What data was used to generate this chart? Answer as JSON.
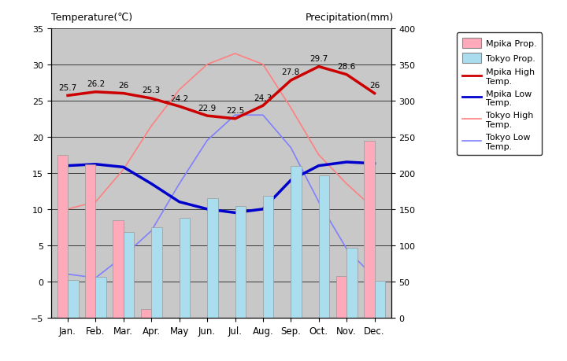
{
  "months": [
    "Jan.",
    "Feb.",
    "Mar.",
    "Apr.",
    "May",
    "Jun.",
    "Jul.",
    "Aug.",
    "Sep.",
    "Oct.",
    "Nov.",
    "Dec."
  ],
  "mpika_high": [
    25.7,
    26.2,
    26.0,
    25.3,
    24.2,
    22.9,
    22.5,
    24.3,
    27.8,
    29.7,
    28.6,
    26.0
  ],
  "mpika_low": [
    16.0,
    16.2,
    15.8,
    13.5,
    11.0,
    10.0,
    9.5,
    10.0,
    14.0,
    16.0,
    16.5,
    16.3
  ],
  "tokyo_high": [
    10.0,
    11.0,
    15.5,
    21.5,
    26.5,
    30.0,
    31.5,
    30.0,
    24.0,
    17.5,
    13.5,
    10.0
  ],
  "tokyo_low": [
    1.0,
    0.5,
    3.5,
    7.0,
    13.5,
    19.5,
    23.0,
    23.0,
    18.5,
    11.0,
    4.5,
    0.5
  ],
  "mpika_prcp_mm": [
    225,
    212,
    135,
    12,
    0,
    0,
    0,
    0,
    0,
    0,
    57,
    244
  ],
  "tokyo_prcp_mm": [
    52,
    56,
    118,
    125,
    138,
    165,
    154,
    168,
    210,
    197,
    97,
    51
  ],
  "mpika_high_labels": [
    "25.7",
    "26.2",
    "26",
    "25.3",
    "24.2",
    "22.9",
    "22.5",
    "24.3",
    "27.8",
    "29.7",
    "28.6",
    "26"
  ],
  "title_left": "Temperature(℃)",
  "title_right": "Precipitation(mm)",
  "ylim_left": [
    -5,
    35
  ],
  "ylim_right": [
    0,
    400
  ],
  "yticks_left": [
    -5,
    0,
    5,
    10,
    15,
    20,
    25,
    30,
    35
  ],
  "yticks_right": [
    0,
    50,
    100,
    150,
    200,
    250,
    300,
    350,
    400
  ],
  "mpika_high_color": "#cc0000",
  "mpika_low_color": "#0000cc",
  "tokyo_high_color": "#ff8080",
  "tokyo_low_color": "#8080ff",
  "mpika_prcp_color": "#ffaabb",
  "tokyo_prcp_color": "#aaddee",
  "bg_color": "#c8c8c8",
  "legend_mpika_prcp": "Mpika Prop.",
  "legend_tokyo_prcp": "Tokyo Prop.",
  "legend_mpika_high": "Mpika High\nTemp.",
  "legend_mpika_low": "Mpika Low\nTemp.",
  "legend_tokyo_high": "Tokyo High\nTemp.",
  "legend_tokyo_low": "Tokyo Low\nTemp."
}
